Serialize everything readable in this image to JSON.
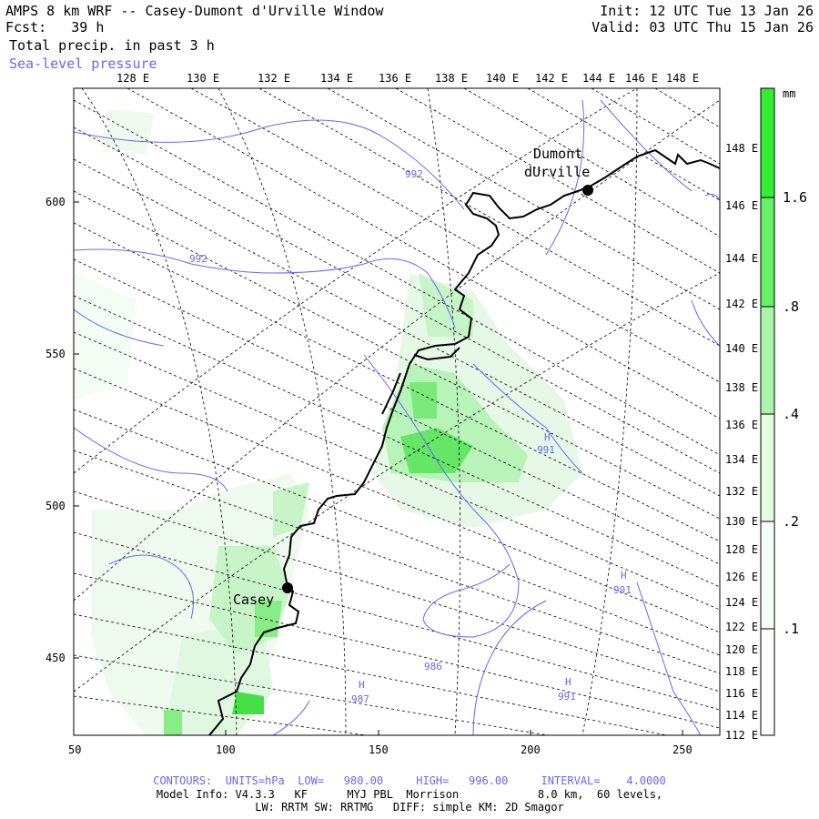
{
  "header": {
    "title": "AMPS 8 km WRF -- Casey-Dumont d'Urville Window",
    "fcst": "Fcst:   39 h",
    "field": "Total precip. in past 3 h",
    "overlay": "Sea-level pressure",
    "init": "Init: 12 UTC Tue 13 Jan 26",
    "valid": "Valid: 03 UTC Thu 15 Jan 26"
  },
  "top_lon_labels": [
    "128 E",
    "130 E",
    "132 E",
    "134 E",
    "136 E",
    "138 E",
    "140 E",
    "142 E",
    "144 E",
    "146 E",
    "148 E"
  ],
  "right_lon_labels": [
    "148 E",
    "146 E",
    "144 E",
    "142 E",
    "140 E",
    "138 E",
    "136 E",
    "134 E",
    "132 E",
    "130 E",
    "128 E",
    "126 E",
    "124 E",
    "122 E",
    "120 E",
    "118 E",
    "116 E",
    "114 E",
    "112 E"
  ],
  "left_ticks": [
    "600",
    "550",
    "500",
    "450"
  ],
  "bottom_ticks": [
    "50",
    "100",
    "150",
    "200",
    "250"
  ],
  "colorbar": {
    "unit": "mm",
    "labels": [
      "1.6",
      ".8",
      ".4",
      ".2",
      ".1"
    ],
    "colors": [
      "#33ee33",
      "#66f066",
      "#aaf5aa",
      "#d9fbd9",
      "#f0fdf0"
    ]
  },
  "stations": {
    "dumont_line1": "Dumont",
    "dumont_line2": "dUrville",
    "casey": "Casey"
  },
  "contour_labels": [
    "992",
    "992",
    "H",
    "991",
    "H",
    "991",
    "986",
    "H",
    "987",
    "H",
    "991"
  ],
  "footer": {
    "contours": "CONTOURS:  UNITS=hPa  LOW=   980.00     HIGH=   996.00     INTERVAL=    4.0000",
    "model_info": "Model Info: V4.3.3   KF      MYJ PBL  Morrison            8.0 km,  60 levels,",
    "physics": "LW: RRTM SW: RRTMG   DIFF: simple KM: 2D Smagor"
  },
  "colors": {
    "contour": "#6666ff",
    "coast": "#000000",
    "grid": "#000000"
  }
}
